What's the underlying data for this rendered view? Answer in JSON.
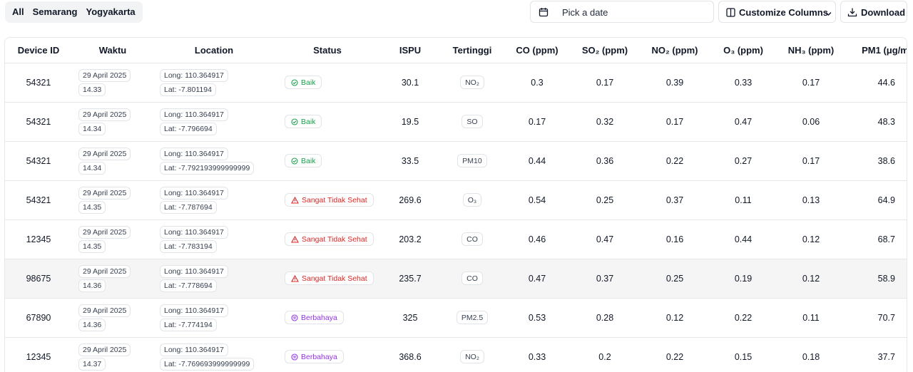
{
  "regions": [
    "All",
    "Semarang",
    "Yogyakarta"
  ],
  "toolbar": {
    "date_placeholder": "Pick a date",
    "customize_label": "Customize Columns",
    "download_label": "Download"
  },
  "columns": [
    "Device ID",
    "Waktu",
    "Location",
    "Status",
    "ISPU",
    "Tertinggi",
    "CO (ppm)",
    "SO₂ (ppm)",
    "NO₂ (ppm)",
    "O₃ (ppm)",
    "NH₃ (ppm)",
    "PM1 (μg/m"
  ],
  "rows": [
    {
      "device": "54321",
      "date": "29 April 2025",
      "time": "14.33",
      "long": "Long: 110.364917",
      "lat": "Lat: -7.801194",
      "status": "Baik",
      "status_type": "baik",
      "ispu": "30.1",
      "tertinggi": "NO₂",
      "co": "0.3",
      "so2": "0.17",
      "no2": "0.39",
      "o3": "0.33",
      "nh3": "0.17",
      "pm1": "44.6"
    },
    {
      "device": "54321",
      "date": "29 April 2025",
      "time": "14.34",
      "long": "Long: 110.364917",
      "lat": "Lat: -7.796694",
      "status": "Baik",
      "status_type": "baik",
      "ispu": "19.5",
      "tertinggi": "SO",
      "co": "0.17",
      "so2": "0.32",
      "no2": "0.17",
      "o3": "0.47",
      "nh3": "0.06",
      "pm1": "48.3"
    },
    {
      "device": "54321",
      "date": "29 April 2025",
      "time": "14.34",
      "long": "Long: 110.364917",
      "lat": "Lat: -7.792193999999999",
      "status": "Baik",
      "status_type": "baik",
      "ispu": "33.5",
      "tertinggi": "PM10",
      "co": "0.44",
      "so2": "0.36",
      "no2": "0.22",
      "o3": "0.27",
      "nh3": "0.17",
      "pm1": "38.6"
    },
    {
      "device": "54321",
      "date": "29 April 2025",
      "time": "14.35",
      "long": "Long: 110.364917",
      "lat": "Lat: -7.787694",
      "status": "Sangat Tidak Sehat",
      "status_type": "sts",
      "ispu": "269.6",
      "tertinggi": "O₃",
      "co": "0.54",
      "so2": "0.25",
      "no2": "0.37",
      "o3": "0.11",
      "nh3": "0.13",
      "pm1": "64.9"
    },
    {
      "device": "12345",
      "date": "29 April 2025",
      "time": "14.35",
      "long": "Long: 110.364917",
      "lat": "Lat: -7.783194",
      "status": "Sangat Tidak Sehat",
      "status_type": "sts",
      "ispu": "203.2",
      "tertinggi": "CO",
      "co": "0.46",
      "so2": "0.47",
      "no2": "0.16",
      "o3": "0.44",
      "nh3": "0.12",
      "pm1": "68.7"
    },
    {
      "device": "98675",
      "date": "29 April 2025",
      "time": "14.36",
      "long": "Long: 110.364917",
      "lat": "Lat: -7.778694",
      "status": "Sangat Tidak Sehat",
      "status_type": "sts",
      "ispu": "235.7",
      "tertinggi": "CO",
      "co": "0.47",
      "so2": "0.37",
      "no2": "0.25",
      "o3": "0.19",
      "nh3": "0.12",
      "pm1": "58.9"
    },
    {
      "device": "67890",
      "date": "29 April 2025",
      "time": "14.36",
      "long": "Long: 110.364917",
      "lat": "Lat: -7.774194",
      "status": "Berbahaya",
      "status_type": "bhy",
      "ispu": "325",
      "tertinggi": "PM2.5",
      "co": "0.53",
      "so2": "0.28",
      "no2": "0.12",
      "o3": "0.22",
      "nh3": "0.11",
      "pm1": "70.7"
    },
    {
      "device": "12345",
      "date": "29 April 2025",
      "time": "14.37",
      "long": "Long: 110.364917",
      "lat": "Lat: -7.769693999999999",
      "status": "Berbahaya",
      "status_type": "bhy",
      "ispu": "368.6",
      "tertinggi": "NO₂",
      "co": "0.33",
      "so2": "0.2",
      "no2": "0.22",
      "o3": "0.15",
      "nh3": "0.18",
      "pm1": "37.7"
    }
  ],
  "colors": {
    "baik": "#16a34a",
    "sangat_tidak_sehat": "#dc2626",
    "berbahaya": "#9333ea"
  }
}
